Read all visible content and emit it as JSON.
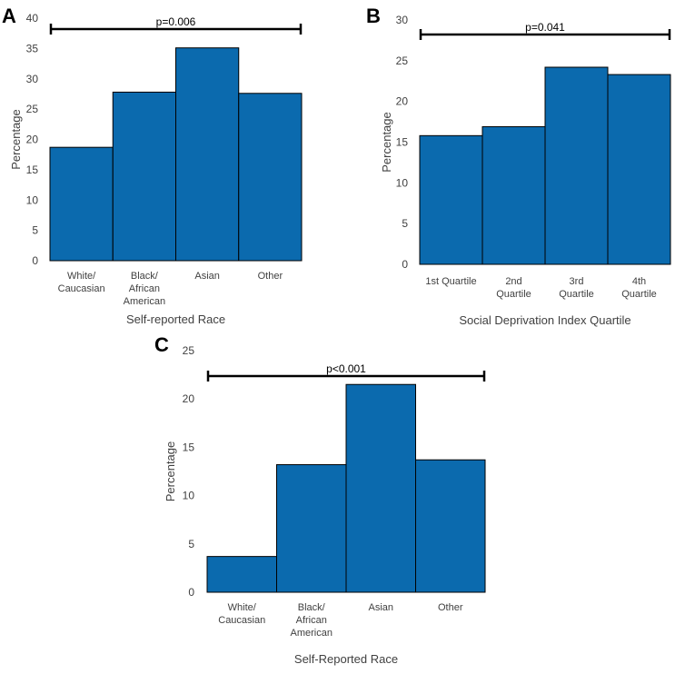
{
  "chart_data": [
    {
      "panel": "A",
      "type": "bar",
      "categories": [
        [
          "White/",
          "Caucasian"
        ],
        [
          "Black/",
          "African",
          "American"
        ],
        [
          "Asian"
        ],
        [
          "Other"
        ]
      ],
      "values": [
        18.7,
        27.8,
        35.1,
        27.6
      ],
      "xlabel": "Self-reported Race",
      "ylabel": "Percentage",
      "ylim": [
        0,
        40
      ],
      "yticks": [
        0,
        5,
        10,
        15,
        20,
        25,
        30,
        35,
        40
      ],
      "annotation": "p=0.006",
      "bar_color": "#0b6aae"
    },
    {
      "panel": "B",
      "type": "bar",
      "categories": [
        [
          "1st Quartile"
        ],
        [
          "2nd",
          "Quartile"
        ],
        [
          "3rd",
          "Quartile"
        ],
        [
          "4th",
          "Quartile"
        ]
      ],
      "values": [
        15.8,
        16.9,
        24.2,
        23.3
      ],
      "xlabel": "Social Deprivation Index Quartile",
      "ylabel": "Percentage",
      "ylim": [
        0,
        30
      ],
      "yticks": [
        0,
        5,
        10,
        15,
        20,
        25,
        30
      ],
      "annotation": "p=0.041",
      "bar_color": "#0b6aae"
    },
    {
      "panel": "C",
      "type": "bar",
      "categories": [
        [
          "White/",
          "Caucasian"
        ],
        [
          "Black/",
          "African",
          "American"
        ],
        [
          "Asian"
        ],
        [
          "Other"
        ]
      ],
      "values": [
        3.7,
        13.2,
        21.5,
        13.7
      ],
      "xlabel": "Self-Reported Race",
      "ylabel": "Percentage",
      "ylim": [
        0,
        25
      ],
      "yticks": [
        0,
        5,
        10,
        15,
        20,
        25
      ],
      "annotation": "p<0.001",
      "bar_color": "#0b6aae"
    }
  ]
}
